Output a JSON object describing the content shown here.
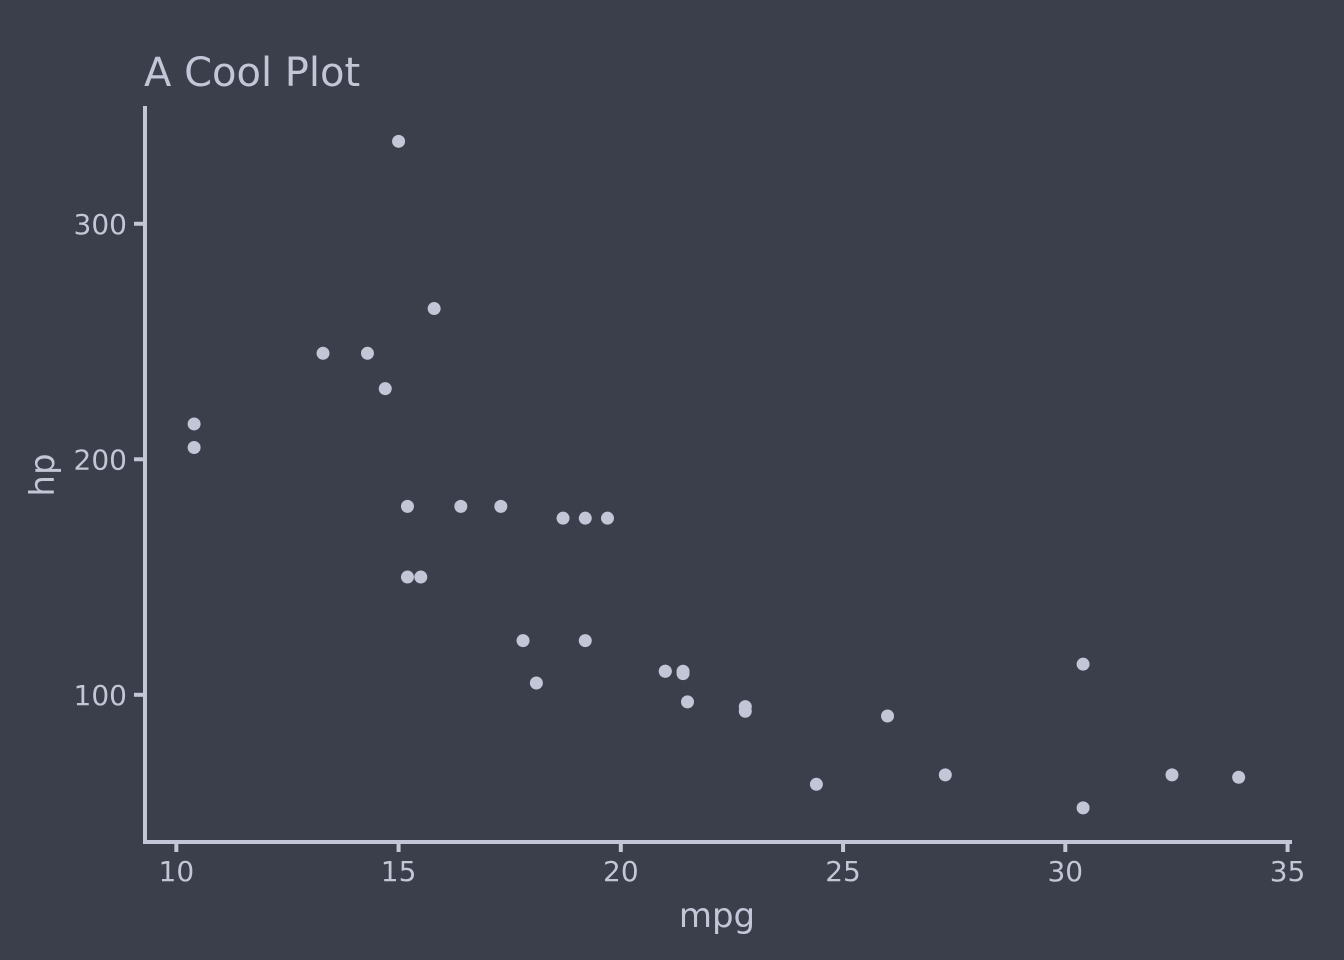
{
  "chart_data": {
    "type": "scatter",
    "title": "A Cool Plot",
    "xlabel": "mpg",
    "ylabel": "hp",
    "xlim": [
      9.25,
      35.1
    ],
    "ylim": [
      37.5,
      350
    ],
    "x_ticks": [
      "10",
      "15",
      "20",
      "25",
      "30",
      "35"
    ],
    "y_ticks": [
      "100",
      "200",
      "300"
    ],
    "grid": false,
    "colors": {
      "background": "#3b3e4b",
      "foreground": "#c2c6d6"
    },
    "points": [
      {
        "x": 21.0,
        "y": 110
      },
      {
        "x": 21.0,
        "y": 110
      },
      {
        "x": 22.8,
        "y": 93
      },
      {
        "x": 21.4,
        "y": 110
      },
      {
        "x": 18.7,
        "y": 175
      },
      {
        "x": 18.1,
        "y": 105
      },
      {
        "x": 14.3,
        "y": 245
      },
      {
        "x": 24.4,
        "y": 62
      },
      {
        "x": 22.8,
        "y": 95
      },
      {
        "x": 19.2,
        "y": 123
      },
      {
        "x": 17.8,
        "y": 123
      },
      {
        "x": 16.4,
        "y": 180
      },
      {
        "x": 17.3,
        "y": 180
      },
      {
        "x": 15.2,
        "y": 180
      },
      {
        "x": 10.4,
        "y": 205
      },
      {
        "x": 10.4,
        "y": 215
      },
      {
        "x": 14.7,
        "y": 230
      },
      {
        "x": 32.4,
        "y": 66
      },
      {
        "x": 30.4,
        "y": 52
      },
      {
        "x": 33.9,
        "y": 65
      },
      {
        "x": 21.5,
        "y": 97
      },
      {
        "x": 15.5,
        "y": 150
      },
      {
        "x": 15.2,
        "y": 150
      },
      {
        "x": 13.3,
        "y": 245
      },
      {
        "x": 19.2,
        "y": 175
      },
      {
        "x": 27.3,
        "y": 66
      },
      {
        "x": 26.0,
        "y": 91
      },
      {
        "x": 30.4,
        "y": 113
      },
      {
        "x": 15.8,
        "y": 264
      },
      {
        "x": 19.7,
        "y": 175
      },
      {
        "x": 15.0,
        "y": 335
      },
      {
        "x": 21.4,
        "y": 109
      }
    ]
  }
}
